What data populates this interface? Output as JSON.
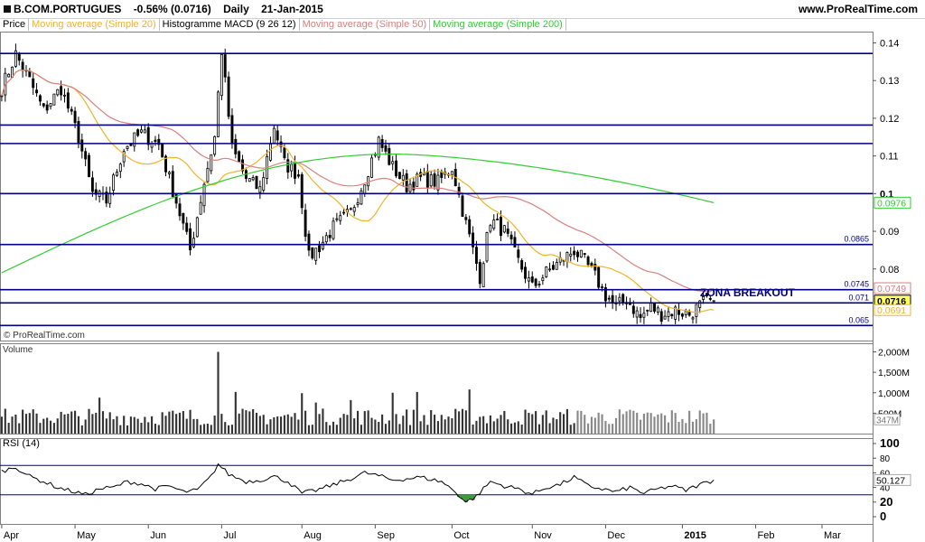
{
  "header": {
    "symbol": "B.COM.PORTUGUES",
    "change": "-0.56% (0.0716)",
    "period": "Daily",
    "date": "21-Jan-2015",
    "site": "www.ProRealTime.com"
  },
  "legend": {
    "price": "Price",
    "ma20": "Moving average (Simple 20)",
    "macd": "Histogramme MACD (9 26 12)",
    "ma50": "Moving average (Simple 50)",
    "ma200": "Moving average (Simple 200)"
  },
  "colors": {
    "hline": "#000080",
    "ma20": "#f0b429",
    "ma50": "#d98080",
    "ma200": "#33cc33",
    "candle": "#000000",
    "volume": "#333333",
    "rsi": "#000000",
    "rsiFill": "#3a9c3a"
  },
  "copyright": "© ProRealTime.com",
  "annotation": "ZONA BREAKOUT",
  "volume_label": "Volume",
  "rsi_label": "RSI (14)",
  "chart_data": {
    "type": "candlestick",
    "price_axis": {
      "min": 0.061,
      "max": 0.143,
      "ticks": [
        {
          "v": 0.14,
          "label": "0.14"
        },
        {
          "v": 0.13,
          "label": "0.13"
        },
        {
          "v": 0.12,
          "label": "0.12"
        },
        {
          "v": 0.11,
          "label": "0.11"
        },
        {
          "v": 0.1,
          "label": "0.1"
        },
        {
          "v": 0.09,
          "label": "0.09"
        },
        {
          "v": 0.08,
          "label": "0.08"
        }
      ]
    },
    "time_axis": {
      "labels": [
        "Apr",
        "May",
        "Jun",
        "Jul",
        "Aug",
        "Sep",
        "Oct",
        "Nov",
        "Dec",
        "2015",
        "Feb",
        "Mar"
      ],
      "positions": [
        0,
        21,
        42,
        63,
        86,
        107,
        129,
        152,
        173,
        195,
        216,
        235
      ],
      "total_days": 250,
      "data_days": 205
    },
    "horizontal_levels": [
      {
        "v": 0.1372,
        "label": ""
      },
      {
        "v": 0.1182,
        "label": ""
      },
      {
        "v": 0.1133,
        "label": ""
      },
      {
        "v": 0.1,
        "label": ""
      },
      {
        "v": 0.0865,
        "label": "0.0865"
      },
      {
        "v": 0.0745,
        "label": "0.0745"
      },
      {
        "v": 0.071,
        "label": "0.071"
      },
      {
        "v": 0.065,
        "label": "0.065"
      }
    ],
    "price_badges": [
      {
        "v": 0.0976,
        "label": "0.0976",
        "color": "#33cc33",
        "bg": "#ffffff"
      },
      {
        "v": 0.0749,
        "label": "0.0749",
        "color": "#d98080",
        "bg": "#ffffff"
      },
      {
        "v": 0.0716,
        "label": "0.0716",
        "color": "#000000",
        "bg": "#ffff66"
      },
      {
        "v": 0.0691,
        "label": "0.0691",
        "color": "#f0b429",
        "bg": "#ffffff"
      }
    ],
    "close_anchors": [
      [
        0,
        0.128
      ],
      [
        4,
        0.137
      ],
      [
        8,
        0.13
      ],
      [
        12,
        0.122
      ],
      [
        17,
        0.128
      ],
      [
        22,
        0.115
      ],
      [
        26,
        0.1
      ],
      [
        30,
        0.098
      ],
      [
        35,
        0.112
      ],
      [
        40,
        0.116
      ],
      [
        45,
        0.113
      ],
      [
        50,
        0.098
      ],
      [
        54,
        0.085
      ],
      [
        58,
        0.103
      ],
      [
        61,
        0.115
      ],
      [
        63,
        0.138
      ],
      [
        66,
        0.112
      ],
      [
        70,
        0.104
      ],
      [
        74,
        0.101
      ],
      [
        78,
        0.118
      ],
      [
        81,
        0.108
      ],
      [
        85,
        0.105
      ],
      [
        88,
        0.083
      ],
      [
        91,
        0.086
      ],
      [
        95,
        0.091
      ],
      [
        100,
        0.095
      ],
      [
        104,
        0.104
      ],
      [
        108,
        0.114
      ],
      [
        112,
        0.107
      ],
      [
        116,
        0.102
      ],
      [
        120,
        0.104
      ],
      [
        125,
        0.103
      ],
      [
        129,
        0.107
      ],
      [
        133,
        0.092
      ],
      [
        137,
        0.078
      ],
      [
        140,
        0.093
      ],
      [
        144,
        0.09
      ],
      [
        148,
        0.082
      ],
      [
        152,
        0.075
      ],
      [
        156,
        0.079
      ],
      [
        160,
        0.082
      ],
      [
        164,
        0.085
      ],
      [
        167,
        0.082
      ],
      [
        170,
        0.078
      ],
      [
        173,
        0.073
      ],
      [
        176,
        0.07
      ],
      [
        179,
        0.072
      ],
      [
        183,
        0.067
      ],
      [
        186,
        0.07
      ],
      [
        189,
        0.068
      ],
      [
        193,
        0.069
      ],
      [
        197,
        0.068
      ],
      [
        201,
        0.071
      ],
      [
        204,
        0.0716
      ]
    ],
    "ma20_final": 0.0691,
    "ma50_final": 0.0749,
    "ma200_final": 0.0976,
    "ma200_start": 0.079,
    "volume_axis": {
      "max": 2100000,
      "ticks": [
        {
          "v": 2000000,
          "label": "2,000M"
        },
        {
          "v": 1500000,
          "label": "1,500M"
        },
        {
          "v": 1000000,
          "label": "1,000M"
        },
        {
          "v": 500000,
          "label": "500M"
        }
      ],
      "last_label": "347M",
      "last_value": 347000
    },
    "volume_spikes": [
      [
        28,
        880000
      ],
      [
        62,
        2000000
      ],
      [
        67,
        1020000
      ],
      [
        86,
        990000
      ],
      [
        90,
        760000
      ],
      [
        112,
        1000000
      ],
      [
        119,
        1020000
      ],
      [
        134,
        1080000
      ],
      [
        100,
        820000
      ]
    ],
    "rsi_axis": {
      "ticks": [
        {
          "v": 100,
          "label": "100"
        },
        {
          "v": 80,
          "label": "80"
        },
        {
          "v": 60,
          "label": "60"
        },
        {
          "v": 40,
          "label": "40"
        },
        {
          "v": 20,
          "label": "20"
        },
        {
          "v": 0,
          "label": "0"
        }
      ],
      "levels": [
        70,
        30
      ],
      "last_label": "50.127",
      "last_value": 50.127
    },
    "rsi_anchors": [
      [
        0,
        62
      ],
      [
        4,
        68
      ],
      [
        8,
        55
      ],
      [
        12,
        48
      ],
      [
        16,
        40
      ],
      [
        20,
        35
      ],
      [
        24,
        30
      ],
      [
        28,
        38
      ],
      [
        32,
        40
      ],
      [
        36,
        48
      ],
      [
        40,
        45
      ],
      [
        44,
        38
      ],
      [
        48,
        42
      ],
      [
        52,
        34
      ],
      [
        56,
        36
      ],
      [
        60,
        55
      ],
      [
        62,
        72
      ],
      [
        65,
        58
      ],
      [
        70,
        48
      ],
      [
        74,
        50
      ],
      [
        78,
        55
      ],
      [
        82,
        48
      ],
      [
        86,
        32
      ],
      [
        90,
        36
      ],
      [
        94,
        42
      ],
      [
        100,
        52
      ],
      [
        104,
        60
      ],
      [
        108,
        56
      ],
      [
        112,
        50
      ],
      [
        116,
        52
      ],
      [
        120,
        54
      ],
      [
        126,
        48
      ],
      [
        130,
        34
      ],
      [
        133,
        20
      ],
      [
        136,
        28
      ],
      [
        140,
        48
      ],
      [
        144,
        42
      ],
      [
        148,
        38
      ],
      [
        152,
        31
      ],
      [
        156,
        40
      ],
      [
        160,
        44
      ],
      [
        164,
        54
      ],
      [
        168,
        42
      ],
      [
        172,
        38
      ],
      [
        176,
        34
      ],
      [
        180,
        40
      ],
      [
        184,
        32
      ],
      [
        188,
        38
      ],
      [
        192,
        42
      ],
      [
        196,
        36
      ],
      [
        200,
        44
      ],
      [
        204,
        50
      ]
    ]
  }
}
